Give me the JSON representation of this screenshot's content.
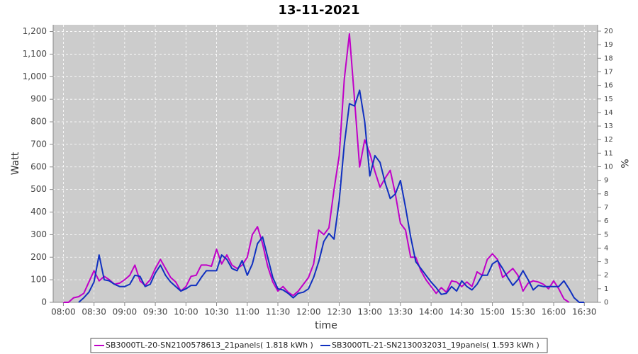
{
  "chart_data": {
    "type": "line",
    "title": "13-11-2021",
    "x_label": "time",
    "y_label": "Watt",
    "y2_label": "%",
    "x": [
      480,
      485,
      490,
      495,
      500,
      505,
      510,
      515,
      520,
      525,
      530,
      535,
      540,
      545,
      550,
      555,
      560,
      565,
      570,
      575,
      580,
      585,
      590,
      595,
      600,
      605,
      610,
      615,
      620,
      625,
      630,
      635,
      640,
      645,
      650,
      655,
      660,
      665,
      670,
      675,
      680,
      685,
      690,
      695,
      700,
      705,
      710,
      715,
      720,
      725,
      730,
      735,
      740,
      745,
      750,
      755,
      760,
      765,
      770,
      775,
      780,
      785,
      790,
      795,
      800,
      805,
      810,
      815,
      820,
      825,
      830,
      835,
      840,
      845,
      850,
      855,
      860,
      865,
      870,
      875,
      880,
      885,
      890,
      895,
      900,
      905,
      910,
      915,
      920,
      925,
      930,
      935,
      940,
      945,
      950,
      955,
      960,
      965,
      970,
      975,
      980,
      985,
      990
    ],
    "xlim": [
      470,
      1003
    ],
    "xticks": [
      {
        "value": 480,
        "label": "08:00"
      },
      {
        "value": 510,
        "label": "08:30"
      },
      {
        "value": 540,
        "label": "09:00"
      },
      {
        "value": 570,
        "label": "09:30"
      },
      {
        "value": 600,
        "label": "10:00"
      },
      {
        "value": 630,
        "label": "10:30"
      },
      {
        "value": 660,
        "label": "11:00"
      },
      {
        "value": 690,
        "label": "11:30"
      },
      {
        "value": 720,
        "label": "12:00"
      },
      {
        "value": 750,
        "label": "12:30"
      },
      {
        "value": 780,
        "label": "13:00"
      },
      {
        "value": 810,
        "label": "13:30"
      },
      {
        "value": 840,
        "label": "14:00"
      },
      {
        "value": 870,
        "label": "14:30"
      },
      {
        "value": 900,
        "label": "15:00"
      },
      {
        "value": 930,
        "label": "15:30"
      },
      {
        "value": 960,
        "label": "16:00"
      },
      {
        "value": 990,
        "label": "16:30"
      }
    ],
    "ylim": [
      0,
      1230
    ],
    "yticks": [
      0,
      100,
      200,
      300,
      400,
      500,
      600,
      700,
      800,
      900,
      {
        "value": 1000,
        "label": "1,000"
      },
      {
        "value": 1100,
        "label": "1,100"
      },
      {
        "value": 1200,
        "label": "1,200"
      }
    ],
    "y2lim": [
      0,
      20.47
    ],
    "y2ticks": [
      0,
      1,
      2,
      3,
      4,
      5,
      6,
      7,
      8,
      9,
      10,
      11,
      12,
      13,
      14,
      15,
      16,
      17,
      18,
      19,
      20
    ],
    "grid": true,
    "series": [
      {
        "name": "SB3000TL-20-SN2100578613_21panels( 1.818 kWh )",
        "color": "#c000c8",
        "values": [
          0,
          0,
          20,
          25,
          40,
          90,
          140,
          95,
          115,
          100,
          80,
          85,
          100,
          120,
          165,
          95,
          75,
          100,
          150,
          190,
          150,
          110,
          90,
          50,
          70,
          115,
          120,
          165,
          165,
          160,
          235,
          170,
          210,
          165,
          150,
          165,
          200,
          300,
          335,
          260,
          160,
          90,
          50,
          70,
          45,
          30,
          50,
          80,
          110,
          170,
          320,
          300,
          330,
          500,
          650,
          990,
          1190,
          900,
          600,
          720,
          660,
          580,
          510,
          550,
          585,
          480,
          350,
          320,
          200,
          200,
          140,
          100,
          70,
          40,
          65,
          45,
          95,
          90,
          70,
          90,
          70,
          135,
          120,
          190,
          215,
          190,
          110,
          130,
          150,
          120,
          50,
          85,
          95,
          90,
          80,
          60,
          95,
          60,
          15,
          0,
          null,
          null,
          null
        ]
      },
      {
        "name": "SB3000TL-21-SN2130032031_19panels( 1.593 kWh )",
        "color": "#1030c0",
        "values": [
          null,
          null,
          null,
          0,
          20,
          45,
          90,
          210,
          100,
          95,
          80,
          70,
          70,
          80,
          120,
          115,
          70,
          80,
          130,
          165,
          120,
          90,
          70,
          50,
          60,
          75,
          75,
          110,
          140,
          140,
          140,
          210,
          190,
          150,
          140,
          185,
          120,
          170,
          260,
          290,
          200,
          110,
          60,
          55,
          40,
          20,
          40,
          45,
          60,
          110,
          180,
          270,
          305,
          280,
          450,
          700,
          880,
          870,
          940,
          800,
          560,
          650,
          620,
          530,
          460,
          480,
          540,
          420,
          290,
          180,
          150,
          120,
          90,
          65,
          35,
          40,
          70,
          50,
          95,
          70,
          55,
          80,
          120,
          120,
          170,
          185,
          150,
          110,
          75,
          100,
          140,
          100,
          55,
          75,
          70,
          70,
          70,
          70,
          95,
          60,
          20,
          0,
          0
        ]
      }
    ]
  }
}
